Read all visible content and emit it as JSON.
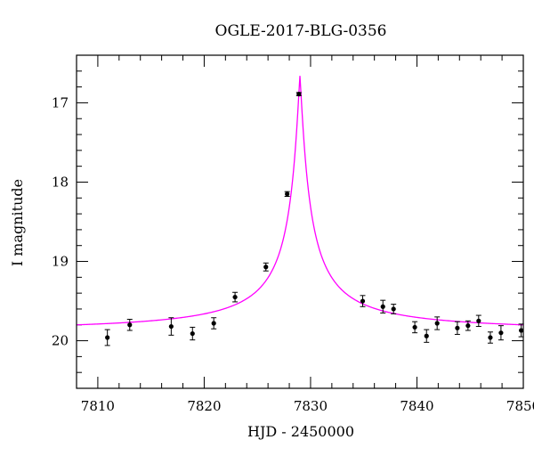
{
  "chart_data": {
    "type": "scatter",
    "title": "OGLE-2017-BLG-0356",
    "xlabel": "HJD - 2450000",
    "ylabel": "I magnitude",
    "xlim": [
      7808,
      7850
    ],
    "ylim": [
      20.6,
      16.4
    ],
    "y_inverted": true,
    "x_ticks": [
      7810,
      7820,
      7830,
      7840,
      7850
    ],
    "y_ticks": [
      17,
      18,
      19,
      20
    ],
    "grid": false,
    "legend": "none",
    "points": [
      {
        "x": 7810.9,
        "y": 19.96,
        "err": 0.1
      },
      {
        "x": 7813.0,
        "y": 19.8,
        "err": 0.07
      },
      {
        "x": 7816.9,
        "y": 19.82,
        "err": 0.11
      },
      {
        "x": 7818.9,
        "y": 19.91,
        "err": 0.08
      },
      {
        "x": 7820.9,
        "y": 19.78,
        "err": 0.07
      },
      {
        "x": 7822.9,
        "y": 19.45,
        "err": 0.06
      },
      {
        "x": 7825.8,
        "y": 19.07,
        "err": 0.05
      },
      {
        "x": 7827.8,
        "y": 18.15,
        "err": 0.03
      },
      {
        "x": 7828.9,
        "y": 16.89,
        "err": 0.02
      },
      {
        "x": 7834.9,
        "y": 19.5,
        "err": 0.07
      },
      {
        "x": 7836.8,
        "y": 19.57,
        "err": 0.08
      },
      {
        "x": 7837.8,
        "y": 19.6,
        "err": 0.06
      },
      {
        "x": 7839.8,
        "y": 19.83,
        "err": 0.07
      },
      {
        "x": 7840.9,
        "y": 19.94,
        "err": 0.08
      },
      {
        "x": 7841.9,
        "y": 19.78,
        "err": 0.08
      },
      {
        "x": 7843.8,
        "y": 19.84,
        "err": 0.08
      },
      {
        "x": 7844.8,
        "y": 19.81,
        "err": 0.06
      },
      {
        "x": 7845.8,
        "y": 19.75,
        "err": 0.07
      },
      {
        "x": 7846.9,
        "y": 19.96,
        "err": 0.07
      },
      {
        "x": 7847.9,
        "y": 19.9,
        "err": 0.09
      },
      {
        "x": 7849.8,
        "y": 19.87,
        "err": 0.08
      }
    ],
    "model_curve": {
      "color": "#ff00ff",
      "peak_time": 7829.0,
      "peak_mag": 16.66,
      "baseline_mag": 19.94,
      "samples": [
        [
          7808,
          19.91
        ],
        [
          7812,
          19.87
        ],
        [
          7816,
          19.82
        ],
        [
          7818,
          19.77
        ],
        [
          7820,
          19.7
        ],
        [
          7822,
          19.58
        ],
        [
          7824,
          19.38
        ],
        [
          7825,
          19.22
        ],
        [
          7826,
          18.98
        ],
        [
          7827,
          18.63
        ],
        [
          7828,
          17.9
        ],
        [
          7828.5,
          17.25
        ],
        [
          7829,
          16.66
        ],
        [
          7829.5,
          17.25
        ],
        [
          7830,
          17.9
        ],
        [
          7831,
          18.63
        ],
        [
          7832,
          18.98
        ],
        [
          7833,
          19.22
        ],
        [
          7834,
          19.38
        ],
        [
          7836,
          19.58
        ],
        [
          7838,
          19.7
        ],
        [
          7840,
          19.77
        ],
        [
          7842,
          19.82
        ],
        [
          7846,
          19.87
        ],
        [
          7850,
          19.91
        ]
      ]
    },
    "colors": {
      "data": "#000000",
      "axes": "#000000",
      "model": "#ff00ff"
    }
  }
}
